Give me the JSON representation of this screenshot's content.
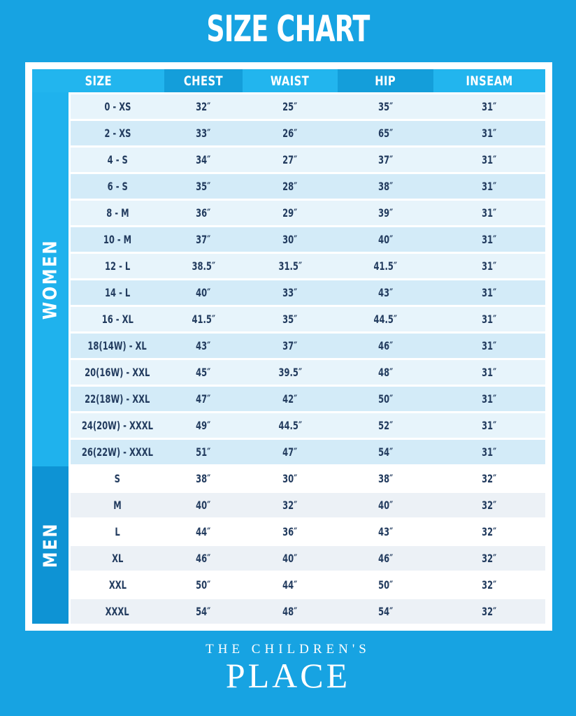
{
  "page_title": "SIZE CHART",
  "colors": {
    "background": "#17A3E2",
    "header_light": "#22B5EE",
    "header_dark": "#149EDA",
    "women_band": "#1FB2ED",
    "men_band": "#0E93D4",
    "row_light_blue": "#E7F4FB",
    "row_blue": "#D3EBF8",
    "row_white": "#FFFFFF",
    "row_gray": "#ECF1F6",
    "text_navy": "#233C5F",
    "frame_white": "#FFFFFF"
  },
  "footer": {
    "brand_line1": "THE CHILDREN'S",
    "brand_line2": "PLACE"
  },
  "chart_data": {
    "type": "table",
    "title": "SIZE CHART",
    "columns": [
      "SIZE",
      "CHEST",
      "WAIST",
      "HIP",
      "INSEAM"
    ],
    "sections": [
      {
        "name": "WOMEN",
        "rows": [
          {
            "size": "0 - XS",
            "chest": "32″",
            "waist": "25″",
            "hip": "35″",
            "inseam": "31″"
          },
          {
            "size": "2 - XS",
            "chest": "33″",
            "waist": "26″",
            "hip": "65″",
            "inseam": "31″"
          },
          {
            "size": "4 - S",
            "chest": "34″",
            "waist": "27″",
            "hip": "37″",
            "inseam": "31″"
          },
          {
            "size": "6 - S",
            "chest": "35″",
            "waist": "28″",
            "hip": "38″",
            "inseam": "31″"
          },
          {
            "size": "8 - M",
            "chest": "36″",
            "waist": "29″",
            "hip": "39″",
            "inseam": "31″"
          },
          {
            "size": "10 - M",
            "chest": "37″",
            "waist": "30″",
            "hip": "40″",
            "inseam": "31″"
          },
          {
            "size": "12 - L",
            "chest": "38.5″",
            "waist": "31.5″",
            "hip": "41.5″",
            "inseam": "31″"
          },
          {
            "size": "14 - L",
            "chest": "40″",
            "waist": "33″",
            "hip": "43″",
            "inseam": "31″"
          },
          {
            "size": "16 - XL",
            "chest": "41.5″",
            "waist": "35″",
            "hip": "44.5″",
            "inseam": "31″"
          },
          {
            "size": "18(14W) - XL",
            "chest": "43″",
            "waist": "37″",
            "hip": "46″",
            "inseam": "31″"
          },
          {
            "size": "20(16W) - XXL",
            "chest": "45″",
            "waist": "39.5″",
            "hip": "48″",
            "inseam": "31″"
          },
          {
            "size": "22(18W) - XXL",
            "chest": "47″",
            "waist": "42″",
            "hip": "50″",
            "inseam": "31″"
          },
          {
            "size": "24(20W) - XXXL",
            "chest": "49″",
            "waist": "44.5″",
            "hip": "52″",
            "inseam": "31″"
          },
          {
            "size": "26(22W) - XXXL",
            "chest": "51″",
            "waist": "47″",
            "hip": "54″",
            "inseam": "31″"
          }
        ]
      },
      {
        "name": "MEN",
        "rows": [
          {
            "size": "S",
            "chest": "38″",
            "waist": "30″",
            "hip": "38″",
            "inseam": "32″"
          },
          {
            "size": "M",
            "chest": "40″",
            "waist": "32″",
            "hip": "40″",
            "inseam": "32″"
          },
          {
            "size": "L",
            "chest": "44″",
            "waist": "36″",
            "hip": "43″",
            "inseam": "32″"
          },
          {
            "size": "XL",
            "chest": "46″",
            "waist": "40″",
            "hip": "46″",
            "inseam": "32″"
          },
          {
            "size": "XXL",
            "chest": "50″",
            "waist": "44″",
            "hip": "50″",
            "inseam": "32″"
          },
          {
            "size": "XXXL",
            "chest": "54″",
            "waist": "48″",
            "hip": "54″",
            "inseam": "32″"
          }
        ]
      }
    ]
  }
}
